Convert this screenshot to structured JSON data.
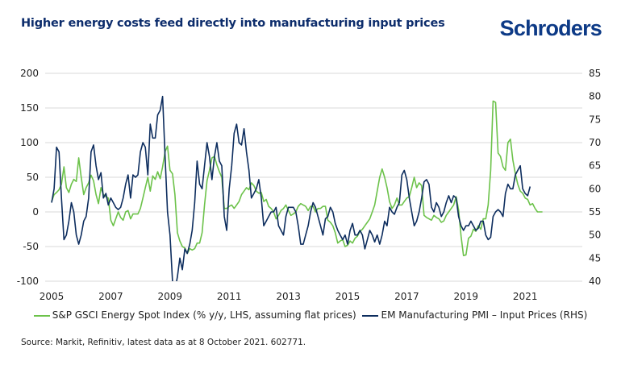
{
  "header": {
    "title": "Higher energy costs feed directly into manufacturing input prices",
    "logo": "Schroders"
  },
  "footer": {
    "source": "Source: Markit, Refinitiv, latest data as at 8 October 2021. 602771."
  },
  "colors": {
    "green": "#6cc24a",
    "navy": "#0d2d5e",
    "grid": "#d9d9d9"
  },
  "chart_data": {
    "type": "line",
    "title": "Higher energy costs feed directly into manufacturing input prices",
    "xlabel": "",
    "ylabel_left": "",
    "ylabel_right": "",
    "x_ticks": [
      "2005",
      "2007",
      "2009",
      "2011",
      "2013",
      "2015",
      "2017",
      "2019",
      "2021"
    ],
    "x_range": [
      2005.0,
      2022.9
    ],
    "y_left_ticks": [
      "200",
      "150",
      "100",
      "50",
      "0",
      "-50",
      "-100"
    ],
    "y_left_range": [
      -100,
      200
    ],
    "y_right_ticks": [
      "85",
      "80",
      "75",
      "70",
      "65",
      "60",
      "55",
      "50",
      "45",
      "40"
    ],
    "y_right_range": [
      40,
      85
    ],
    "grid": true,
    "legend_position": "bottom",
    "series": [
      {
        "name": "S&P GSCI Energy Spot Index (% y/y, LHS, assuming flat prices)",
        "axis": "left",
        "color": "#6cc24a",
        "start": "2005-01",
        "frequency": "monthly",
        "values": [
          15,
          25,
          28,
          32,
          40,
          65,
          35,
          28,
          40,
          47,
          44,
          78,
          50,
          25,
          35,
          42,
          53,
          45,
          25,
          12,
          35,
          25,
          22,
          20,
          -12,
          -20,
          -10,
          0,
          -8,
          -12,
          0,
          2,
          -10,
          -3,
          -3,
          -3,
          5,
          20,
          35,
          50,
          30,
          52,
          47,
          58,
          48,
          65,
          87,
          95,
          60,
          55,
          25,
          -30,
          -42,
          -50,
          -52,
          -60,
          -53,
          -55,
          -53,
          -45,
          -45,
          -30,
          10,
          45,
          60,
          78,
          80,
          68,
          58,
          50,
          5,
          5,
          8,
          10,
          5,
          10,
          15,
          25,
          30,
          35,
          32,
          42,
          38,
          30,
          27,
          28,
          15,
          18,
          8,
          5,
          0,
          -10,
          -5,
          2,
          5,
          10,
          2,
          -5,
          -3,
          0,
          8,
          12,
          10,
          8,
          2,
          8,
          8,
          0,
          5,
          5,
          8,
          8,
          -12,
          -15,
          -20,
          -30,
          -45,
          -42,
          -40,
          -50,
          -48,
          -42,
          -45,
          -38,
          -35,
          -28,
          -25,
          -20,
          -15,
          -10,
          0,
          10,
          30,
          50,
          62,
          50,
          35,
          15,
          5,
          10,
          20,
          10,
          10,
          15,
          20,
          22,
          35,
          50,
          35,
          42,
          38,
          -5,
          -8,
          -10,
          -12,
          -5,
          -8,
          -10,
          -15,
          -13,
          -5,
          0,
          5,
          10,
          22,
          3,
          -35,
          -63,
          -62,
          -38,
          -35,
          -25,
          -28,
          -20,
          -25,
          -10,
          -10,
          10,
          60,
          160,
          158,
          85,
          80,
          65,
          60,
          100,
          105,
          75,
          55,
          40,
          30,
          27,
          20,
          18,
          10,
          12,
          5,
          0,
          0,
          0
        ]
      },
      {
        "name": "EM Manufacturing PMI – Input Prices (RHS)",
        "axis": "right",
        "color": "#0d2d5e",
        "start": "2005-01",
        "frequency": "monthly",
        "values": [
          57,
          60,
          69,
          68,
          58,
          49,
          50,
          53,
          57,
          55,
          50,
          48,
          50,
          53,
          54,
          58,
          68,
          69.5,
          65,
          62,
          63.5,
          58,
          59,
          56.5,
          58,
          57,
          56,
          55.5,
          56,
          58,
          61,
          63,
          58,
          63,
          62.5,
          63,
          68,
          70,
          69,
          63,
          74,
          71,
          71,
          76,
          77,
          80,
          67,
          55,
          50,
          40,
          38,
          41,
          45,
          42.5,
          47,
          46,
          48,
          51,
          57,
          66,
          61,
          60,
          65,
          70,
          67,
          62,
          67,
          70,
          66,
          65,
          54,
          51,
          60,
          65,
          72,
          74,
          70,
          69.5,
          73,
          68,
          64,
          58,
          59,
          60,
          62,
          58,
          52,
          53,
          54,
          55,
          55,
          56,
          52,
          51,
          50,
          54,
          56,
          56,
          56,
          55,
          52,
          48,
          48,
          50,
          52,
          55,
          57,
          56,
          54,
          52,
          50,
          53.5,
          54,
          56,
          55,
          52.5,
          51,
          50,
          49,
          50,
          48,
          51,
          52.5,
          50,
          50,
          51,
          50,
          47,
          49,
          51,
          50,
          48.5,
          50,
          48,
          50,
          53,
          52,
          56,
          55,
          54.5,
          56,
          57,
          63,
          64,
          62,
          58,
          55,
          52,
          53,
          55,
          58,
          61.5,
          62,
          61,
          56,
          55,
          57,
          56,
          54,
          55,
          57,
          58.5,
          57,
          58.5,
          58,
          54,
          52,
          51,
          52,
          52,
          53,
          52,
          51,
          51.5,
          53,
          53,
          50,
          49,
          49.5,
          54,
          55,
          55.5,
          55,
          54,
          59,
          61,
          60,
          60,
          63,
          64,
          65,
          60,
          59,
          58.5,
          60.5
        ]
      }
    ]
  }
}
